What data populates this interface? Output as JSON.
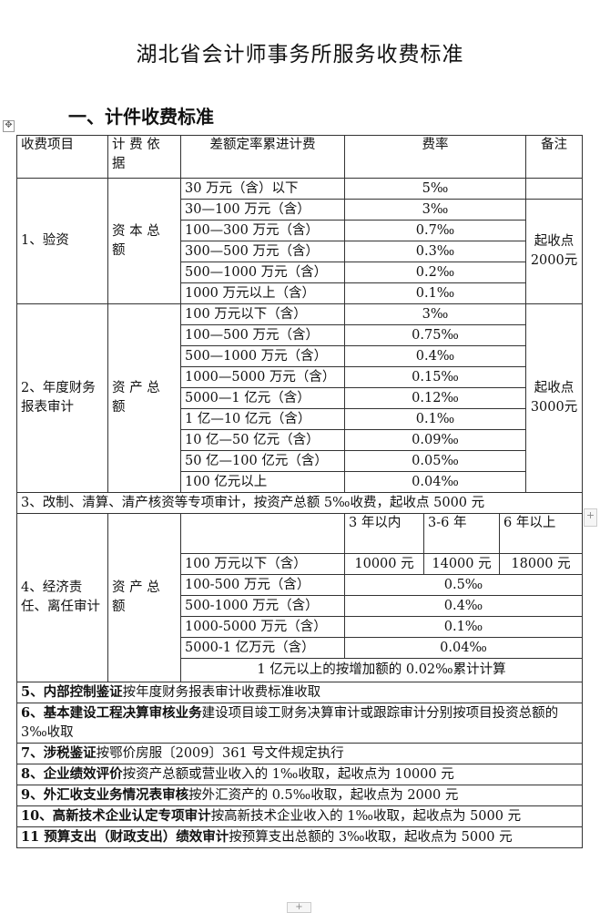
{
  "title": "湖北省会计师事务所服务收费标准",
  "heading": "一、计件收费标准",
  "header": [
    "收费项目",
    "计 费 依 据",
    "差额定率累进计费",
    "费率",
    "备注"
  ],
  "s1": {
    "item": "1、验资",
    "basis": "资 本 总 额",
    "remark": "起收点2000元",
    "rows": [
      [
        "30 万元（含）以下",
        "5‰"
      ],
      [
        "30—100 万元（含）",
        "3‰"
      ],
      [
        "100—300 万元（含）",
        "0.7‰"
      ],
      [
        "300—500 万元（含）",
        "0.3‰"
      ],
      [
        "500—1000 万元（含）",
        "0.2‰"
      ],
      [
        "1000 万元以上（含）",
        "0.1‰"
      ]
    ]
  },
  "s2": {
    "item": "2、年度财务报表审计",
    "basis": "资 产 总 额",
    "remark": "起收点3000元",
    "rows": [
      [
        "100 万元以下（含）",
        "3‰"
      ],
      [
        "100—500 万元（含）",
        "0.75‰"
      ],
      [
        "500—1000 万元（含）",
        "0.4‰"
      ],
      [
        "1000—5000 万元（含）",
        "0.15‰"
      ],
      [
        "5000—1 亿元（含）",
        "0.12‰"
      ],
      [
        "1 亿—10 亿元（含）",
        "0.1‰"
      ],
      [
        "10 亿—50 亿元（含）",
        "0.09‰"
      ],
      [
        "50 亿—100 亿元（含）",
        "0.05‰"
      ],
      [
        "100 亿元以上",
        "0.04‰"
      ]
    ]
  },
  "s3": "3、改制、清算、清产核资等专项审计，按资产总额 5‰收费，起收点 5000 元",
  "s4": {
    "item": "4、经济责任、离任审计",
    "basis": "资 产 总 额",
    "periods": [
      "3 年以内",
      "3-6 年",
      "6 年以上"
    ],
    "first": {
      "range": "100 万元以下（含）",
      "fees": [
        "10000 元",
        "14000 元",
        "18000 元"
      ]
    },
    "rows": [
      [
        "100-500 万元（含）",
        "0.5‰"
      ],
      [
        "500-1000 万元（含）",
        "0.4‰"
      ],
      [
        "1000-5000 万元（含）",
        "0.1‰"
      ],
      [
        "5000-1 亿万元（含）",
        "0.04‰"
      ]
    ],
    "note": "1 亿元以上的按增加额的 0.02‰累计计算"
  },
  "others": [
    {
      "bold": "5、内部控制鉴证",
      "text": "按年度财务报表审计收费标准收取"
    },
    {
      "bold": "6、基本建设工程决算审核业务",
      "text": "建设项目竣工财务决算审计或跟踪审计分别按项目投资总额的 3‰收取"
    },
    {
      "bold": "7、涉税鉴证",
      "text": "按鄂价房服〔2009〕361 号文件规定执行"
    },
    {
      "bold": "8、企业绩效评价",
      "text": "按资产总额或营业收入的 1‰收取，起收点为 10000 元"
    },
    {
      "bold": "9、外汇收支业务情况表审核",
      "text": "按外汇资产的 0.5‰收取，起收点为 2000 元"
    },
    {
      "bold": "10、高新技术企业认定专项审计",
      "text": "按高新技术企业收入的 1‰收取，起收点为 5000 元"
    },
    {
      "bold": "11 预算支出（财政支出）绩效审计",
      "text": "按预算支出总额的 3‰收取，起收点为 5000 元"
    }
  ],
  "icons": {
    "move": "move-handle-icon",
    "add": "plus-icon"
  }
}
